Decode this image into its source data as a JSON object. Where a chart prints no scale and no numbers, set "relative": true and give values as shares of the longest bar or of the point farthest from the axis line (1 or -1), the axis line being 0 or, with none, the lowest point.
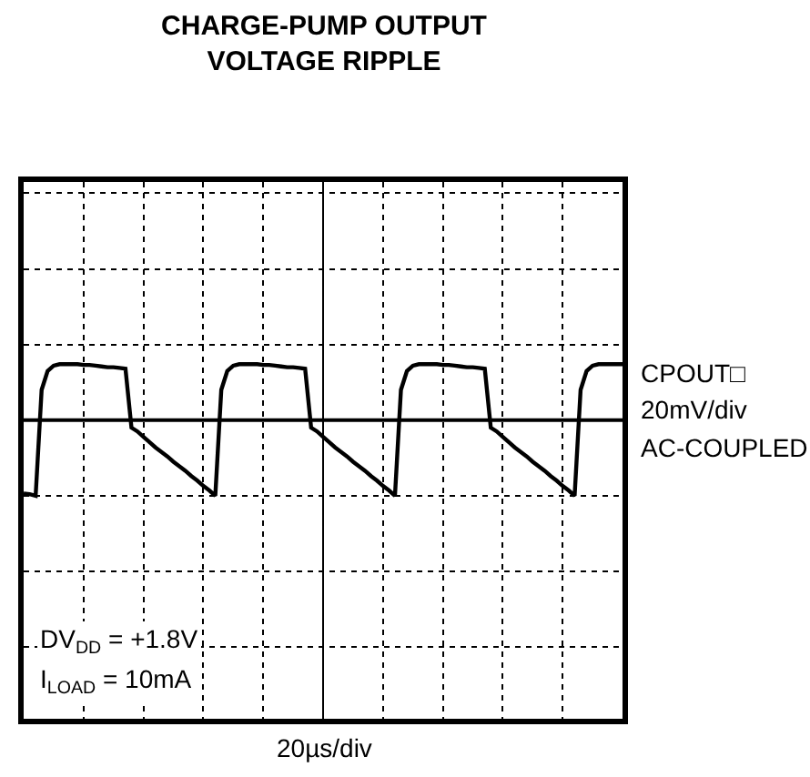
{
  "chart_data": {
    "type": "line",
    "title": "CHARGE-PUMP OUTPUT\nVOLTAGE RIPPLE",
    "relative": true,
    "grid": true,
    "marker": "none",
    "line_style": "solid",
    "annotations": [
      "CPOUT□",
      "20mV/div",
      "AC-COUPLED",
      "DV$_{DD}$ = +1.8V",
      "I$_{LOAD}$ = 10mA",
      "20µs/div"
    ],
    "categories": [
      null,
      null,
      null,
      null,
      null,
      null,
      null,
      null,
      null,
      null,
      null,
      null,
      null,
      null,
      null,
      null,
      null,
      null,
      null,
      null,
      null,
      null,
      null,
      null,
      null,
      null,
      null,
      null,
      null,
      null,
      null,
      null,
      null,
      null,
      null,
      null,
      null,
      null,
      null,
      null,
      null,
      null,
      null,
      null,
      null,
      null,
      null,
      null,
      null,
      null,
      null,
      null,
      null,
      null,
      null,
      null,
      null,
      null,
      null,
      null,
      null,
      null,
      null,
      null,
      null,
      null,
      null,
      null,
      null,
      null,
      null,
      null,
      null,
      null,
      null,
      null,
      null,
      null,
      null,
      null,
      null,
      null,
      null,
      null,
      null,
      null,
      null,
      null,
      null,
      null,
      null,
      null,
      null,
      null,
      null,
      null,
      null,
      null,
      null,
      null,
      null
    ],
    "series": [
      {
        "color": "#000000",
        "values": [
          -0.97,
          -0.98,
          -1.0,
          0.4,
          0.65,
          0.72,
          0.74,
          0.74,
          0.74,
          0.74,
          0.73,
          0.73,
          0.72,
          0.71,
          0.7,
          0.7,
          0.69,
          0.68,
          -0.1,
          -0.15,
          -0.22,
          -0.29,
          -0.36,
          -0.42,
          -0.48,
          -0.55,
          -0.61,
          -0.67,
          -0.74,
          -0.8,
          -0.87,
          -0.93,
          -1.0,
          0.4,
          0.65,
          0.72,
          0.74,
          0.74,
          0.74,
          0.74,
          0.73,
          0.73,
          0.72,
          0.71,
          0.7,
          0.7,
          0.69,
          0.68,
          -0.1,
          -0.15,
          -0.22,
          -0.29,
          -0.36,
          -0.42,
          -0.48,
          -0.55,
          -0.61,
          -0.67,
          -0.74,
          -0.8,
          -0.87,
          -0.93,
          -1.0,
          0.4,
          0.65,
          0.72,
          0.74,
          0.74,
          0.74,
          0.74,
          0.73,
          0.73,
          0.72,
          0.71,
          0.7,
          0.7,
          0.69,
          0.68,
          -0.1,
          -0.15,
          -0.22,
          -0.29,
          -0.36,
          -0.42,
          -0.48,
          -0.55,
          -0.61,
          -0.67,
          -0.74,
          -0.8,
          -0.87,
          -0.93,
          -1.0,
          0.4,
          0.65,
          0.72,
          0.74,
          0.74,
          0.74,
          0.74,
          0.74
        ]
      }
    ]
  }
}
